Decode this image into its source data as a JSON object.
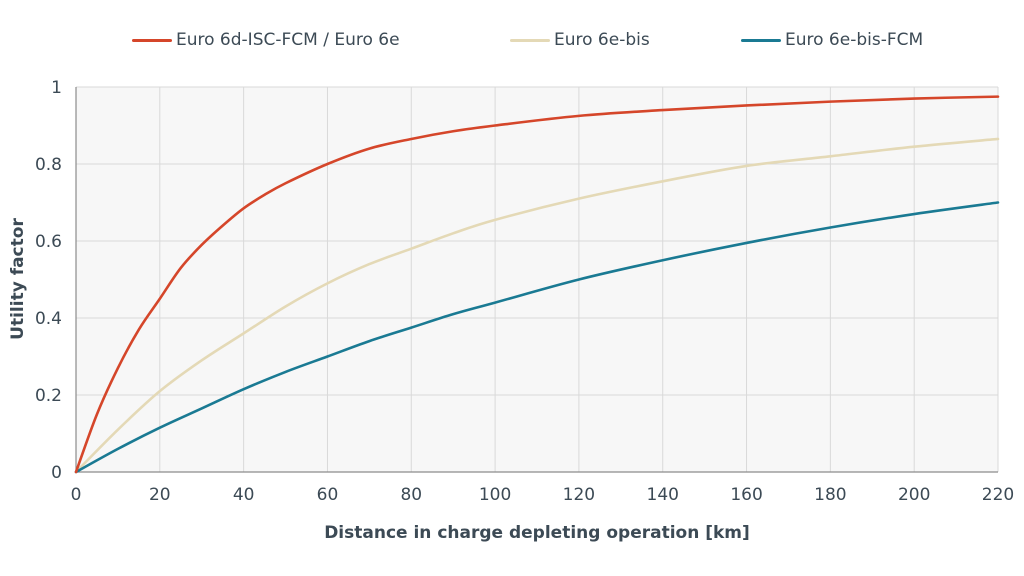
{
  "chart_data": {
    "type": "line",
    "xlabel": "Distance in charge depleting operation [km]",
    "ylabel": "Utility factor",
    "xlim": [
      0,
      220
    ],
    "ylim": [
      0,
      1
    ],
    "x_ticks": [
      0,
      20,
      40,
      60,
      80,
      100,
      120,
      140,
      160,
      180,
      200,
      220
    ],
    "y_ticks": [
      0,
      0.2,
      0.4,
      0.6,
      0.8,
      1
    ],
    "y_tick_labels": [
      "0",
      "0.2",
      "0.4",
      "0.6",
      "0.8",
      "1"
    ],
    "grid": true,
    "legend_position": "top",
    "series": [
      {
        "name": "Euro 6d-ISC-FCM / Euro 6e",
        "color": "#d5462a",
        "x": [
          0,
          5,
          10,
          15,
          20,
          25,
          30,
          35,
          40,
          45,
          50,
          60,
          70,
          80,
          90,
          100,
          120,
          140,
          160,
          180,
          200,
          220
        ],
        "y": [
          0,
          0.15,
          0.27,
          0.37,
          0.45,
          0.53,
          0.59,
          0.64,
          0.685,
          0.72,
          0.75,
          0.8,
          0.84,
          0.865,
          0.885,
          0.9,
          0.925,
          0.94,
          0.952,
          0.962,
          0.97,
          0.975
        ]
      },
      {
        "name": "Euro 6e-bis",
        "color": "#e4d9b6",
        "x": [
          0,
          10,
          20,
          30,
          40,
          50,
          60,
          70,
          80,
          90,
          100,
          120,
          140,
          160,
          180,
          200,
          220
        ],
        "y": [
          0,
          0.11,
          0.21,
          0.29,
          0.36,
          0.43,
          0.49,
          0.54,
          0.58,
          0.62,
          0.655,
          0.71,
          0.755,
          0.795,
          0.82,
          0.845,
          0.865
        ]
      },
      {
        "name": "Euro 6e-bis-FCM",
        "color": "#1a7a93",
        "x": [
          0,
          10,
          20,
          30,
          40,
          50,
          60,
          70,
          80,
          90,
          100,
          120,
          140,
          160,
          180,
          200,
          220
        ],
        "y": [
          0,
          0.06,
          0.115,
          0.165,
          0.215,
          0.26,
          0.3,
          0.34,
          0.375,
          0.41,
          0.44,
          0.5,
          0.55,
          0.595,
          0.635,
          0.67,
          0.7
        ]
      }
    ]
  }
}
